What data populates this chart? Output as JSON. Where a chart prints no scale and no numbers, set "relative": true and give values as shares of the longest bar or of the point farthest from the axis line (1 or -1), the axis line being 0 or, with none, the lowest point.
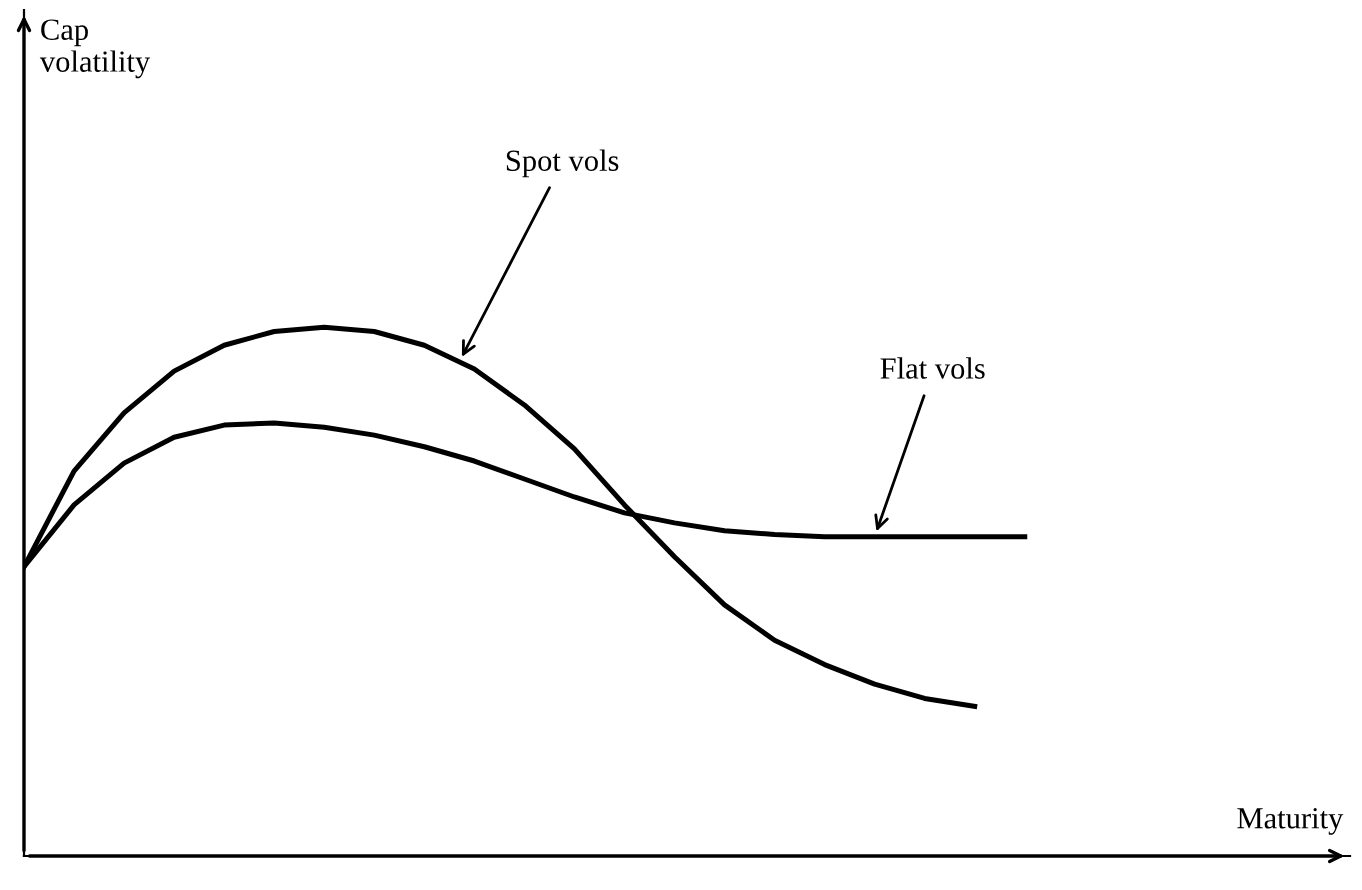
{
  "chart_data": {
    "type": "line",
    "relative": true,
    "annotations": [
      "Cap\nvolatility",
      "Maturity"
    ],
    "legend": false,
    "marker": "none",
    "line_style": "solid",
    "categories": [
      null,
      null,
      null,
      null,
      null,
      null,
      null,
      null,
      null,
      null,
      null,
      null,
      null,
      null,
      null,
      null,
      null,
      null,
      null,
      null,
      null
    ],
    "series": [
      {
        "name": "Spot vols",
        "color": "#000000",
        "values": [
          0.547,
          0.728,
          0.838,
          0.917,
          0.966,
          0.992,
          1.0,
          0.992,
          0.966,
          0.921,
          0.853,
          0.77,
          0.664,
          0.566,
          0.475,
          0.408,
          0.362,
          0.325,
          0.298,
          0.283,
          null
        ]
      },
      {
        "name": "Flat vols",
        "color": "#000000",
        "values": [
          0.547,
          0.664,
          0.743,
          0.792,
          0.815,
          0.819,
          0.811,
          0.796,
          0.774,
          0.747,
          0.713,
          0.679,
          0.649,
          0.63,
          0.615,
          0.608,
          0.604,
          0.604,
          0.604,
          0.604,
          0.604
        ]
      }
    ]
  }
}
